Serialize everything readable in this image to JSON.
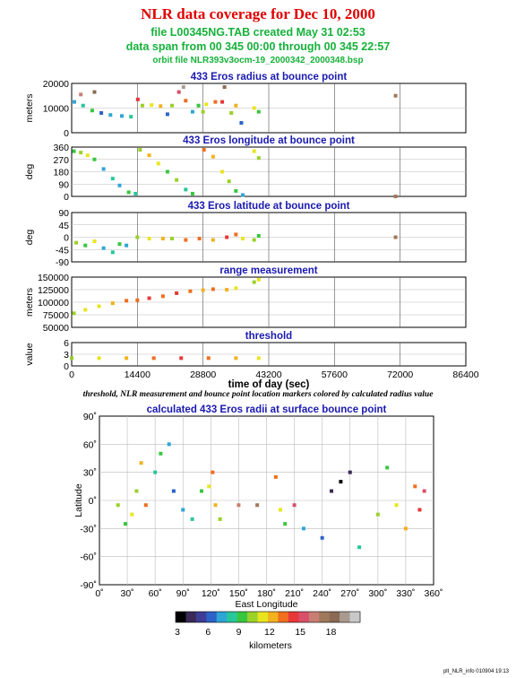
{
  "header": {
    "title": "NLR data coverage for Dec 10, 2000",
    "file_line": "file L00345NG.TAB created May 31 02:53",
    "span_line": "data span from 00 345 00:00 through 00 345 22:57",
    "orbit_line": "orbit file NLR393v3ocm-19_2000342_2000348.bsp"
  },
  "caption": "threshold, NLR measurement and bounce point location markers colored by calculated radius value",
  "footer": "plt_NLR_info 010904 19:13",
  "colorbar": {
    "label": "kilometers",
    "ticks": [
      "3",
      "6",
      "9",
      "12",
      "15",
      "18"
    ],
    "colors": [
      "#000000",
      "#3a2a55",
      "#3d3d96",
      "#2c63c8",
      "#2fa6d6",
      "#28c79a",
      "#39c63f",
      "#9ad12a",
      "#e8e520",
      "#f2b21d",
      "#ef6e1f",
      "#e8383a",
      "#d8506a",
      "#c97e74",
      "#a0785a",
      "#8a6a52",
      "#a89a8e",
      "#c8c8c8"
    ]
  },
  "colors": {
    "title": "#e00000",
    "subtitle": "#16b13a",
    "panel_title": "#1a1ab0"
  },
  "chart_data": [
    {
      "type": "scatter",
      "title": "433 Eros radius at bounce point",
      "ylabel": "meters",
      "ylim": [
        0,
        20000
      ],
      "yticks": [
        "20000",
        "10000",
        "0"
      ],
      "xlim": [
        0,
        86400
      ],
      "grid": true,
      "series": [
        {
          "points": [
            [
              600,
              12500,
              6
            ],
            [
              2500,
              11000,
              7
            ],
            [
              4500,
              9000,
              8
            ],
            [
              6500,
              8000,
              5
            ],
            [
              8500,
              7200,
              6
            ],
            [
              11000,
              6800,
              6
            ],
            [
              13000,
              6500,
              7
            ],
            [
              15500,
              11000,
              9
            ],
            [
              17500,
              11200,
              10
            ],
            [
              19500,
              10800,
              11
            ],
            [
              21000,
              7500,
              5
            ],
            [
              22000,
              11000,
              9
            ],
            [
              23500,
              16500,
              14
            ],
            [
              25000,
              13000,
              12
            ],
            [
              26500,
              8500,
              6
            ],
            [
              27800,
              11000,
              8
            ],
            [
              28800,
              8500,
              9
            ],
            [
              29500,
              11500,
              10
            ],
            [
              31500,
              12500,
              12
            ],
            [
              33000,
              12500,
              13
            ],
            [
              35000,
              8000,
              9
            ],
            [
              36000,
              11000,
              11
            ],
            [
              37200,
              4000,
              5
            ],
            [
              40000,
              10000,
              10
            ],
            [
              41000,
              8500,
              8
            ],
            [
              71000,
              15000,
              16
            ],
            [
              2000,
              15500,
              15
            ],
            [
              5000,
              16500,
              17
            ],
            [
              14500,
              13500,
              13
            ],
            [
              24500,
              18500,
              18
            ],
            [
              33500,
              18500,
              17
            ]
          ]
        }
      ]
    },
    {
      "type": "scatter",
      "title": "433 Eros longitude at bounce point",
      "ylabel": "deg",
      "ylim": [
        0,
        360
      ],
      "yticks": [
        "360",
        "270",
        "180",
        "90",
        "0"
      ],
      "xlim": [
        0,
        86400
      ],
      "grid": true,
      "series": [
        {
          "points": [
            [
              500,
              330,
              8
            ],
            [
              2000,
              320,
              9
            ],
            [
              3500,
              300,
              10
            ],
            [
              5000,
              270,
              8
            ],
            [
              7000,
              200,
              6
            ],
            [
              9000,
              130,
              7
            ],
            [
              10500,
              80,
              6
            ],
            [
              12500,
              30,
              8
            ],
            [
              14000,
              20,
              7
            ],
            [
              15000,
              340,
              9
            ],
            [
              17000,
              300,
              11
            ],
            [
              19000,
              240,
              10
            ],
            [
              21000,
              180,
              8
            ],
            [
              23000,
              120,
              9
            ],
            [
              25000,
              50,
              7
            ],
            [
              26500,
              20,
              8
            ],
            [
              29000,
              340,
              12
            ],
            [
              31000,
              290,
              11
            ],
            [
              33000,
              180,
              10
            ],
            [
              34500,
              110,
              9
            ],
            [
              36000,
              40,
              8
            ],
            [
              37500,
              10,
              6
            ],
            [
              40000,
              330,
              10
            ],
            [
              41000,
              280,
              9
            ],
            [
              71000,
              0,
              16
            ]
          ]
        }
      ]
    },
    {
      "type": "scatter",
      "title": "433 Eros latitude at bounce point",
      "ylabel": "deg",
      "ylim": [
        -90,
        90
      ],
      "yticks": [
        "90",
        "45",
        "0",
        "-45",
        "-90"
      ],
      "xlim": [
        0,
        86400
      ],
      "grid": true,
      "series": [
        {
          "points": [
            [
              1000,
              -20,
              9
            ],
            [
              3000,
              -30,
              8
            ],
            [
              5000,
              -15,
              10
            ],
            [
              7000,
              -40,
              6
            ],
            [
              9000,
              -55,
              7
            ],
            [
              10500,
              -25,
              8
            ],
            [
              12000,
              -30,
              6
            ],
            [
              14400,
              0,
              9
            ],
            [
              17000,
              -5,
              10
            ],
            [
              20000,
              -5,
              11
            ],
            [
              22000,
              -5,
              9
            ],
            [
              25000,
              -10,
              12
            ],
            [
              28000,
              -5,
              12
            ],
            [
              31000,
              -10,
              11
            ],
            [
              34000,
              0,
              13
            ],
            [
              36000,
              10,
              12
            ],
            [
              37500,
              -5,
              10
            ],
            [
              40000,
              -10,
              9
            ],
            [
              41000,
              5,
              8
            ],
            [
              71000,
              0,
              16
            ]
          ]
        }
      ]
    },
    {
      "type": "scatter",
      "title": "range measurement",
      "ylabel": "meters",
      "ylim": [
        50000,
        150000
      ],
      "yticks": [
        "150000",
        "125000",
        "100000",
        "75000",
        "50000"
      ],
      "xlim": [
        0,
        86400
      ],
      "grid": true,
      "series": [
        {
          "points": [
            [
              500,
              78000,
              9
            ],
            [
              3000,
              85000,
              10
            ],
            [
              6000,
              92000,
              10
            ],
            [
              9000,
              98000,
              11
            ],
            [
              12000,
              103000,
              12
            ],
            [
              14400,
              104000,
              12
            ],
            [
              17000,
              108000,
              13
            ],
            [
              20000,
              112000,
              12
            ],
            [
              23000,
              118000,
              13
            ],
            [
              26000,
              122000,
              12
            ],
            [
              28800,
              124000,
              11
            ],
            [
              31000,
              126000,
              12
            ],
            [
              34000,
              125000,
              11
            ],
            [
              36000,
              128000,
              10
            ],
            [
              40000,
              140000,
              9
            ],
            [
              41000,
              145000,
              10
            ]
          ]
        }
      ]
    },
    {
      "type": "scatter",
      "title": "threshold",
      "ylabel": "value",
      "ylim": [
        0,
        6
      ],
      "yticks": [
        "6",
        "3",
        "0"
      ],
      "xlim": [
        0,
        86400
      ],
      "xticks": [
        "0",
        "14400",
        "28800",
        "43200",
        "57600",
        "72000",
        "86400"
      ],
      "xlabel": "time of day (sec)",
      "grid": true,
      "series": [
        {
          "points": [
            [
              0,
              2,
              9
            ],
            [
              6000,
              2,
              10
            ],
            [
              12000,
              2,
              11
            ],
            [
              18000,
              2,
              12
            ],
            [
              24000,
              2,
              13
            ],
            [
              30000,
              2,
              12
            ],
            [
              36000,
              2,
              11
            ],
            [
              41000,
              2,
              10
            ]
          ]
        }
      ]
    },
    {
      "type": "scatter",
      "title": "calculated 433 Eros radii at surface bounce point",
      "xlabel": "East Longitude",
      "ylabel": "Latitude",
      "xlim": [
        0,
        360
      ],
      "ylim": [
        -90,
        90
      ],
      "xticks": [
        "0˚",
        "30˚",
        "60˚",
        "90˚",
        "120˚",
        "150˚",
        "180˚",
        "210˚",
        "240˚",
        "270˚",
        "300˚",
        "330˚",
        "360˚"
      ],
      "yticks": [
        "90˚",
        "60˚",
        "30˚",
        "0˚",
        "-30˚",
        "-60˚",
        "-90˚"
      ],
      "grid": true,
      "series": [
        {
          "points": [
            [
              20,
              -5,
              9
            ],
            [
              28,
              -25,
              8
            ],
            [
              35,
              -15,
              10
            ],
            [
              40,
              10,
              9
            ],
            [
              45,
              40,
              11
            ],
            [
              50,
              -5,
              12
            ],
            [
              60,
              30,
              7
            ],
            [
              66,
              50,
              8
            ],
            [
              75,
              60,
              6
            ],
            [
              80,
              10,
              5
            ],
            [
              90,
              -10,
              6
            ],
            [
              100,
              -20,
              7
            ],
            [
              110,
              10,
              8
            ],
            [
              118,
              15,
              10
            ],
            [
              122,
              30,
              12
            ],
            [
              125,
              -5,
              11
            ],
            [
              130,
              -20,
              9
            ],
            [
              150,
              -5,
              15
            ],
            [
              170,
              -5,
              16
            ],
            [
              190,
              25,
              12
            ],
            [
              195,
              -10,
              10
            ],
            [
              200,
              -25,
              8
            ],
            [
              210,
              -5,
              14
            ],
            [
              220,
              -30,
              6
            ],
            [
              240,
              -40,
              5
            ],
            [
              250,
              10,
              3
            ],
            [
              260,
              20,
              2
            ],
            [
              270,
              30,
              3
            ],
            [
              280,
              -50,
              7
            ],
            [
              300,
              -15,
              9
            ],
            [
              310,
              35,
              8
            ],
            [
              320,
              -5,
              10
            ],
            [
              330,
              -30,
              11
            ],
            [
              340,
              15,
              12
            ],
            [
              345,
              -10,
              13
            ],
            [
              350,
              10,
              14
            ]
          ]
        }
      ]
    }
  ]
}
